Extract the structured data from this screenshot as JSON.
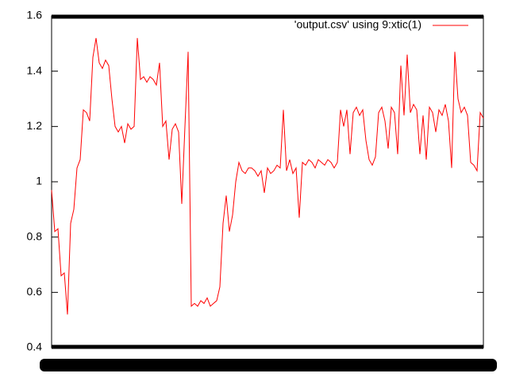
{
  "chart_data": {
    "type": "line",
    "legend": "'output.csv' using 9:xtic(1)",
    "legend_position": "top-right",
    "color": "#ff0000",
    "grid": false,
    "ylim": [
      0.4,
      1.6
    ],
    "yticks": [
      0.4,
      0.6,
      0.8,
      1,
      1.2,
      1.4,
      1.6
    ],
    "values": [
      0.97,
      0.82,
      0.83,
      0.66,
      0.67,
      0.52,
      0.85,
      0.9,
      1.05,
      1.08,
      1.26,
      1.25,
      1.22,
      1.45,
      1.52,
      1.43,
      1.41,
      1.44,
      1.42,
      1.3,
      1.2,
      1.18,
      1.2,
      1.14,
      1.21,
      1.19,
      1.2,
      1.52,
      1.37,
      1.38,
      1.36,
      1.38,
      1.37,
      1.35,
      1.43,
      1.2,
      1.22,
      1.08,
      1.19,
      1.21,
      1.18,
      0.92,
      1.2,
      1.47,
      0.55,
      0.56,
      0.55,
      0.57,
      0.56,
      0.58,
      0.55,
      0.56,
      0.57,
      0.62,
      0.85,
      0.95,
      0.82,
      0.88,
      1.0,
      1.07,
      1.04,
      1.03,
      1.05,
      1.05,
      1.04,
      1.02,
      1.04,
      0.96,
      1.05,
      1.03,
      1.04,
      1.06,
      1.05,
      1.26,
      1.04,
      1.08,
      1.03,
      1.05,
      0.87,
      1.07,
      1.06,
      1.08,
      1.07,
      1.05,
      1.08,
      1.07,
      1.06,
      1.08,
      1.07,
      1.05,
      1.07,
      1.26,
      1.2,
      1.26,
      1.1,
      1.25,
      1.27,
      1.24,
      1.26,
      1.15,
      1.08,
      1.06,
      1.09,
      1.25,
      1.27,
      1.22,
      1.12,
      1.27,
      1.25,
      1.1,
      1.42,
      1.24,
      1.46,
      1.25,
      1.28,
      1.26,
      1.1,
      1.24,
      1.08,
      1.27,
      1.25,
      1.18,
      1.26,
      1.24,
      1.28,
      1.22,
      1.05,
      1.47,
      1.3,
      1.25,
      1.27,
      1.24,
      1.07,
      1.06,
      1.04,
      1.25,
      1.23
    ]
  }
}
